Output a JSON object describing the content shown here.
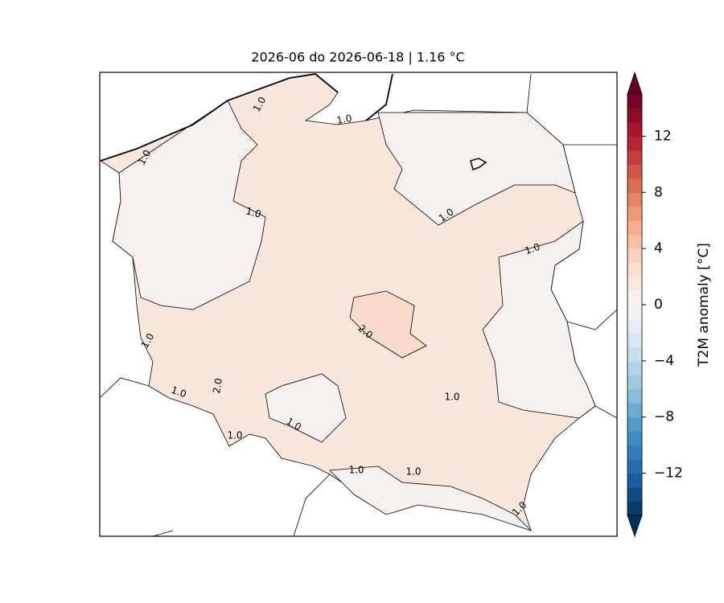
{
  "map": {
    "title": "2026-06 do 2026-06-18 | 1.16 °C",
    "contour_labels": [
      "1.0",
      "1.0",
      "1.0",
      "1.0",
      "1.0",
      "1.0",
      "1.0",
      "1.0",
      "1.0",
      "1.0",
      "1.0",
      "1.0",
      "1.0",
      "1.0",
      "2.0",
      "2.0"
    ]
  },
  "colorbar": {
    "label": "T2M anomaly [°C]",
    "clim": [
      -15,
      15
    ],
    "n_levels": 30,
    "extend": "both",
    "colors": [
      "#053061",
      "#2166ac",
      "#4393c3",
      "#92c5de",
      "#d1e5f0",
      "#f7f7f7",
      "#fddbc7",
      "#f4a582",
      "#d6604d",
      "#b2182b",
      "#67001f"
    ],
    "ticks": [
      12,
      8,
      4,
      0,
      {
        "value": -4,
        "label": "−4"
      },
      {
        "value": -8,
        "label": "−8"
      },
      {
        "value": -12,
        "label": "−12"
      }
    ]
  }
}
